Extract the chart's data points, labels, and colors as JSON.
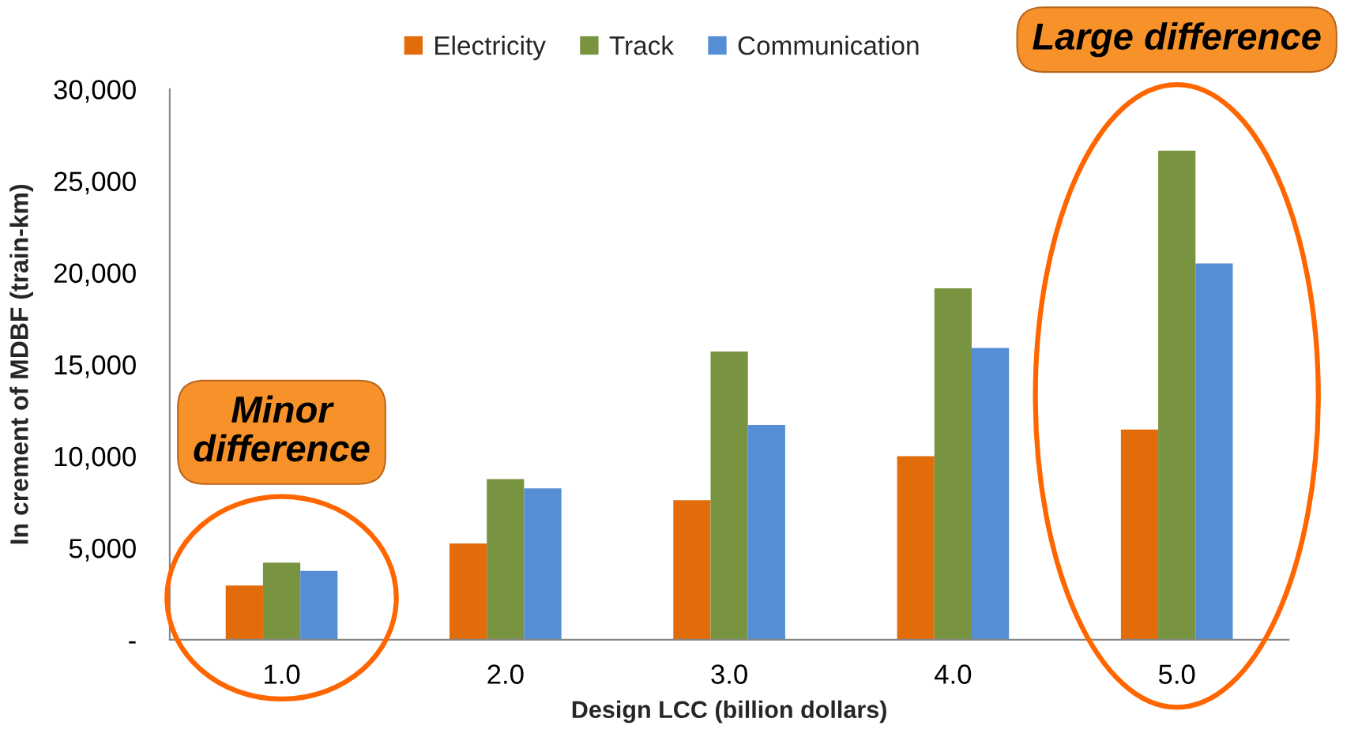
{
  "chart_data": {
    "type": "bar",
    "categories": [
      "1.0",
      "2.0",
      "3.0",
      "4.0",
      "5.0"
    ],
    "series": [
      {
        "name": "Electricity",
        "color": "#e36c0a",
        "values": [
          2950,
          5250,
          7600,
          10000,
          11450
        ]
      },
      {
        "name": "Track",
        "color": "#789440",
        "values": [
          4200,
          8750,
          15700,
          19150,
          26650
        ]
      },
      {
        "name": "Communication",
        "color": "#558ed5",
        "values": [
          3750,
          8250,
          11700,
          15900,
          20500
        ]
      }
    ],
    "xlabel": "Design LCC (billion dollars)",
    "ylabel": "In crement of MDBF (train-km)",
    "ylim": [
      0,
      30000
    ],
    "yticks": [
      {
        "value": 0,
        "label": "-"
      },
      {
        "value": 5000,
        "label": "5,000"
      },
      {
        "value": 10000,
        "label": "10,000"
      },
      {
        "value": 15000,
        "label": "15,000"
      },
      {
        "value": 20000,
        "label": "20,000"
      },
      {
        "value": 25000,
        "label": "25,000"
      },
      {
        "value": 30000,
        "label": "30,000"
      }
    ],
    "legend": "top",
    "grid": false,
    "annotations": [
      "Minor\ndifference",
      "Large difference"
    ]
  }
}
